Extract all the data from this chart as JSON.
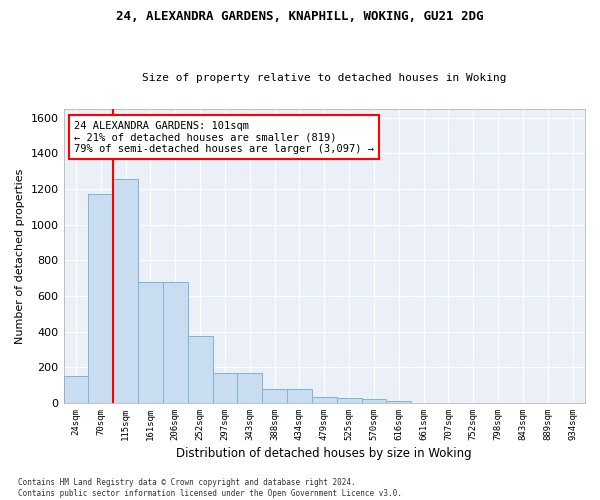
{
  "title1": "24, ALEXANDRA GARDENS, KNAPHILL, WOKING, GU21 2DG",
  "title2": "Size of property relative to detached houses in Woking",
  "xlabel": "Distribution of detached houses by size in Woking",
  "ylabel": "Number of detached properties",
  "bar_color": "#c9ddf0",
  "bar_edge_color": "#7fb3d9",
  "annotation_box_text": "24 ALEXANDRA GARDENS: 101sqm\n← 21% of detached houses are smaller (819)\n79% of semi-detached houses are larger (3,097) →",
  "categories": [
    "24sqm",
    "70sqm",
    "115sqm",
    "161sqm",
    "206sqm",
    "252sqm",
    "297sqm",
    "343sqm",
    "388sqm",
    "434sqm",
    "479sqm",
    "525sqm",
    "570sqm",
    "616sqm",
    "661sqm",
    "707sqm",
    "752sqm",
    "798sqm",
    "843sqm",
    "889sqm",
    "934sqm"
  ],
  "values": [
    150,
    1170,
    1255,
    680,
    680,
    375,
    170,
    170,
    80,
    80,
    35,
    25,
    20,
    12,
    0,
    0,
    0,
    0,
    0,
    0,
    0
  ],
  "red_line_x": 1.5,
  "ylim": [
    0,
    1650
  ],
  "yticks": [
    0,
    200,
    400,
    600,
    800,
    1000,
    1200,
    1400,
    1600
  ],
  "background_color": "#eaeff8",
  "grid_color": "#ffffff",
  "footnote": "Contains HM Land Registry data © Crown copyright and database right 2024.\nContains public sector information licensed under the Open Government Licence v3.0."
}
